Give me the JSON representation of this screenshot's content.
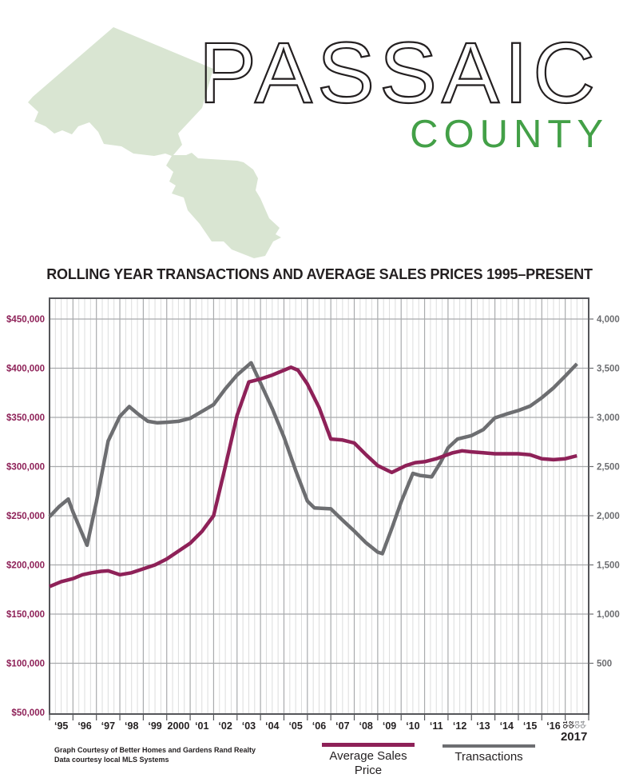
{
  "header": {
    "county_name": "PASSAIC",
    "county_word": "COUNTY",
    "county_color": "#43a047",
    "map_fill": "#d9e5d2"
  },
  "chart_title": "ROLLING YEAR TRANSACTIONS AND AVERAGE SALES PRICES 1995–PRESENT",
  "chart_data": {
    "type": "line",
    "title": "Rolling Year Transactions and Average Sales Prices 1995–Present",
    "x_axis": {
      "start_year": 1995,
      "end_year": 2018,
      "quarters_per_year": 4,
      "year_labels": [
        "‘95",
        "‘96",
        "‘97",
        "‘98",
        "‘99",
        "2000",
        "‘01",
        "‘02",
        "‘03",
        "‘04",
        "‘05",
        "‘06",
        "‘07",
        "‘08",
        "‘09",
        "‘10",
        "‘11",
        "‘12",
        "‘13",
        "‘14",
        "‘15",
        "‘16"
      ],
      "quarter_labels_2017": [
        "Q1",
        "Q2",
        "Q3",
        "Q4"
      ],
      "quarter_label_colors": [
        "#231f20",
        "#231f20",
        "#939598",
        "#939598"
      ],
      "final_year_label": "2017"
    },
    "y_left": {
      "title": "Average Sales Price ($)",
      "min": 50000,
      "max": 450000,
      "step": 50000,
      "tick_labels": [
        "$50,000",
        "$100,000",
        "$150,000",
        "$200,000",
        "$250,000",
        "$300,000",
        "$350,000",
        "$400,000",
        "$450,000"
      ],
      "color": "#8e2158"
    },
    "y_right": {
      "title": "Transactions",
      "min": 0,
      "max": 4000,
      "step": 500,
      "tick_labels": [
        "500",
        "1,000",
        "1,500",
        "2,000",
        "2,500",
        "3,000",
        "3,500",
        "4,000"
      ],
      "color": "#6d6e71"
    },
    "grid": {
      "minor_vertical_per_year": 4,
      "minor_color": "#dcdddd",
      "major_color": "#a9abad",
      "frame_color": "#55565a"
    },
    "legend_position": "bottom",
    "series": [
      {
        "name": "Transactions",
        "color": "#6d6e71",
        "axis": "right",
        "points": [
          [
            1995.0,
            1990
          ],
          [
            1995.4,
            2090
          ],
          [
            1995.8,
            2170
          ],
          [
            1996.0,
            2040
          ],
          [
            1996.6,
            1700
          ],
          [
            1997.0,
            2140
          ],
          [
            1997.5,
            2760
          ],
          [
            1998.0,
            3010
          ],
          [
            1998.4,
            3110
          ],
          [
            1998.8,
            3030
          ],
          [
            1999.2,
            2960
          ],
          [
            1999.6,
            2945
          ],
          [
            2000.0,
            2950
          ],
          [
            2000.5,
            2960
          ],
          [
            2001.0,
            2990
          ],
          [
            2001.5,
            3060
          ],
          [
            2002.0,
            3130
          ],
          [
            2002.5,
            3290
          ],
          [
            2003.0,
            3430
          ],
          [
            2003.6,
            3555
          ],
          [
            2004.0,
            3350
          ],
          [
            2004.5,
            3090
          ],
          [
            2005.0,
            2800
          ],
          [
            2005.5,
            2460
          ],
          [
            2006.0,
            2150
          ],
          [
            2006.3,
            2080
          ],
          [
            2007.0,
            2070
          ],
          [
            2007.5,
            1955
          ],
          [
            2008.0,
            1845
          ],
          [
            2008.5,
            1725
          ],
          [
            2009.0,
            1630
          ],
          [
            2009.2,
            1615
          ],
          [
            2009.6,
            1870
          ],
          [
            2010.0,
            2140
          ],
          [
            2010.5,
            2430
          ],
          [
            2010.8,
            2410
          ],
          [
            2011.3,
            2395
          ],
          [
            2011.7,
            2550
          ],
          [
            2012.0,
            2690
          ],
          [
            2012.4,
            2780
          ],
          [
            2013.0,
            2815
          ],
          [
            2013.5,
            2875
          ],
          [
            2014.0,
            2995
          ],
          [
            2014.5,
            3035
          ],
          [
            2015.0,
            3070
          ],
          [
            2015.5,
            3115
          ],
          [
            2016.0,
            3200
          ],
          [
            2016.5,
            3300
          ],
          [
            2017.0,
            3420
          ],
          [
            2017.5,
            3545
          ]
        ]
      },
      {
        "name": "Average Sales Price",
        "color": "#8e2158",
        "axis": "left",
        "points": [
          [
            1995.0,
            178000
          ],
          [
            1995.5,
            183000
          ],
          [
            1996.0,
            186000
          ],
          [
            1996.4,
            190000
          ],
          [
            1996.8,
            192000
          ],
          [
            1997.2,
            193500
          ],
          [
            1997.5,
            194000
          ],
          [
            1998.0,
            190000
          ],
          [
            1998.5,
            192000
          ],
          [
            1999.0,
            196000
          ],
          [
            1999.5,
            200000
          ],
          [
            2000.0,
            206000
          ],
          [
            2000.5,
            214000
          ],
          [
            2001.0,
            222000
          ],
          [
            2001.5,
            234000
          ],
          [
            2002.0,
            250000
          ],
          [
            2002.5,
            300000
          ],
          [
            2003.0,
            352000
          ],
          [
            2003.5,
            386000
          ],
          [
            2004.0,
            389000
          ],
          [
            2004.5,
            393000
          ],
          [
            2005.0,
            398000
          ],
          [
            2005.3,
            401000
          ],
          [
            2005.6,
            398000
          ],
          [
            2006.0,
            384000
          ],
          [
            2006.5,
            360000
          ],
          [
            2007.0,
            328000
          ],
          [
            2007.5,
            327000
          ],
          [
            2008.0,
            324000
          ],
          [
            2008.5,
            312000
          ],
          [
            2009.0,
            301000
          ],
          [
            2009.6,
            294000
          ],
          [
            2010.2,
            301000
          ],
          [
            2010.6,
            304000
          ],
          [
            2011.0,
            305000
          ],
          [
            2011.5,
            308000
          ],
          [
            2012.2,
            314000
          ],
          [
            2012.6,
            316000
          ],
          [
            2013.0,
            315000
          ],
          [
            2013.5,
            314000
          ],
          [
            2014.0,
            313000
          ],
          [
            2014.5,
            313000
          ],
          [
            2015.0,
            313000
          ],
          [
            2015.5,
            312000
          ],
          [
            2016.0,
            308000
          ],
          [
            2016.5,
            307000
          ],
          [
            2017.0,
            308000
          ],
          [
            2017.5,
            311000
          ]
        ]
      }
    ]
  },
  "legend": [
    {
      "label": "Average Sales Price",
      "color": "#8e2158"
    },
    {
      "label": "Transactions",
      "color": "#6d6e71"
    }
  ],
  "footer": {
    "line1": "Graph Courtesy of Better Homes and Gardens Rand Realty",
    "line2": "Data courtesy local MLS Systems"
  }
}
